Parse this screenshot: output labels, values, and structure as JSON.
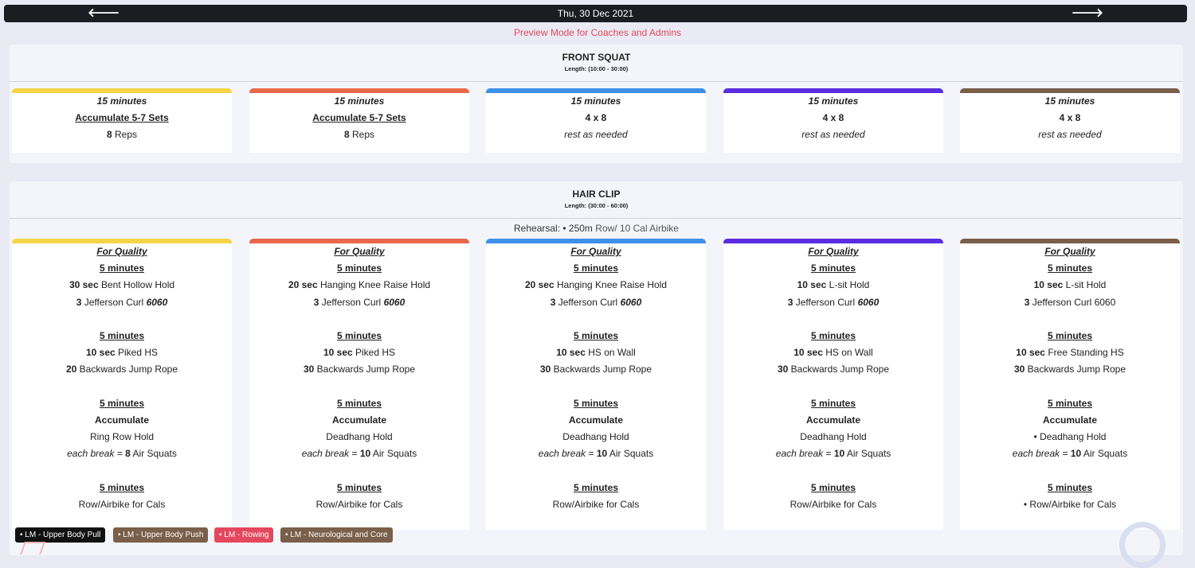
{
  "header": {
    "date": "Thu, 30 Dec 2021",
    "prev_label": "🡐",
    "next_label": "🡒"
  },
  "preview_notice": "Preview Mode for Coaches and Admins",
  "colors": {
    "yellow": "#f5d548",
    "orange": "#e8694a",
    "blue": "#3f90e8",
    "purple": "#5a2de0",
    "brown": "#7a5f4a",
    "preview": "#e4485e"
  },
  "sections": [
    {
      "title": "FRONT SQUAT",
      "length": "Length: (10:00 - 30:00)",
      "cards": [
        {
          "time": "15 minutes",
          "scheme": "Accumulate 5-7 Sets",
          "reps_num": "8",
          "reps_text": " Reps"
        },
        {
          "time": "15 minutes",
          "scheme": "Accumulate 5-7 Sets",
          "reps_num": "8",
          "reps_text": " Reps"
        },
        {
          "time": "15 minutes",
          "scheme": "4 x 8",
          "rest": "rest as needed"
        },
        {
          "time": "15 minutes",
          "scheme": "4 x 8",
          "rest": "rest as needed"
        },
        {
          "time": "15 minutes",
          "scheme": "4 x 8",
          "rest": "rest as needed"
        }
      ]
    },
    {
      "title": "HAIR CLIP",
      "length": "Length: (30:00 - 60:00)",
      "rehearsal": {
        "label": "Rehearsal: • ",
        "distance": "250m",
        "rest": " Row/ 10 Cal Airbike"
      },
      "cards": [
        {
          "quality": "For Quality",
          "b1": "5 minutes",
          "b1_a_num": "30 sec",
          "b1_a_text": " Bent Hollow Hold",
          "b1_b_num": "3",
          "b1_b_text": " Jefferson Curl ",
          "b1_b_tempo": "6060",
          "b2": "5 minutes",
          "b2_a_num": "10 sec",
          "b2_a_text": " Piked HS",
          "b2_b_num": "20",
          "b2_b_text": " Backwards Jump Rope",
          "b3": "5 minutes",
          "b3_acc": "Accumulate",
          "b3_hold": "Ring Row Hold",
          "b3_break_a": "each break",
          "b3_break_b": " = ",
          "b3_break_num": "8",
          "b3_break_c": " Air Squats",
          "b4": "5 minutes",
          "b4_text": "Row/Airbike for Cals"
        },
        {
          "quality": "For Quality",
          "b1": "5 minutes",
          "b1_a_num": "20 sec",
          "b1_a_text": " Hanging Knee Raise Hold",
          "b1_b_num": "3",
          "b1_b_text": " Jefferson Curl ",
          "b1_b_tempo": "6060",
          "b2": "5 minutes",
          "b2_a_num": "10 sec",
          "b2_a_text": " Piked HS",
          "b2_b_num": "30",
          "b2_b_text": " Backwards Jump Rope",
          "b3": "5 minutes",
          "b3_acc": "Accumulate",
          "b3_hold": "Deadhang Hold",
          "b3_break_a": "each break",
          "b3_break_b": " = ",
          "b3_break_num": "10",
          "b3_break_c": " Air Squats",
          "b4": "5 minutes",
          "b4_text": "Row/Airbike for Cals"
        },
        {
          "quality": "For Quality",
          "b1": "5 minutes",
          "b1_a_num": "20 sec",
          "b1_a_text": " Hanging Knee Raise Hold",
          "b1_b_num": "3",
          "b1_b_text": " Jefferson Curl ",
          "b1_b_tempo": "6060",
          "b2": "5 minutes",
          "b2_a_num": "10 sec",
          "b2_a_text": " HS on Wall",
          "b2_b_num": "30",
          "b2_b_text": " Backwards Jump Rope",
          "b3": "5 minutes",
          "b3_acc": "Accumulate",
          "b3_hold": "Deadhang Hold",
          "b3_break_a": "each break",
          "b3_break_b": " = ",
          "b3_break_num": "10",
          "b3_break_c": " Air Squats",
          "b4": "5 minutes",
          "b4_text": "Row/Airbike for Cals"
        },
        {
          "quality": "For Quality",
          "b1": "5 minutes",
          "b1_a_num": "10 sec",
          "b1_a_text": " L-sit Hold",
          "b1_b_num": "3",
          "b1_b_text": " Jefferson Curl ",
          "b1_b_tempo": "6060",
          "b2": "5 minutes",
          "b2_a_num": "10 sec",
          "b2_a_text": " HS on Wall",
          "b2_b_num": "30",
          "b2_b_text": " Backwards Jump Rope",
          "b3": "5 minutes",
          "b3_acc": "Accumulate",
          "b3_hold": "Deadhang Hold",
          "b3_break_a": "each break",
          "b3_break_b": " = ",
          "b3_break_num": "10",
          "b3_break_c": " Air Squats",
          "b4": "5 minutes",
          "b4_text": "Row/Airbike for Cals"
        },
        {
          "quality": "For Quality",
          "b1": "5 minutes",
          "b1_a_num": "10 sec",
          "b1_a_text": " L-sit Hold",
          "b1_b_num": "3",
          "b1_b_text": " Jefferson Curl 6060",
          "b1_b_tempo": "",
          "b2": "5 minutes",
          "b2_a_num": "10 sec",
          "b2_a_text": " Free Standing HS",
          "b2_b_num": "30",
          "b2_b_text": " Backwards Jump Rope",
          "b3": "5 minutes",
          "b3_acc": "Accumulate",
          "b3_hold": "• Deadhang Hold",
          "b3_break_a": "each break",
          "b3_break_b": " = ",
          "b3_break_num": "10",
          "b3_break_c": " Air Squats",
          "b4": "5 minutes",
          "b4_text": "• Row/Airbike for Cals"
        }
      ]
    }
  ],
  "legend": [
    {
      "label": "• LM - Upper Body Pull",
      "color": "#111111"
    },
    {
      "label": "• LM - Upper Body Push",
      "color": "#7a5f4a"
    },
    {
      "label": "• LM - Rowing",
      "color": "#e4485e"
    },
    {
      "label": "• LM - Neurological and Core",
      "color": "#7a5f4a"
    }
  ]
}
